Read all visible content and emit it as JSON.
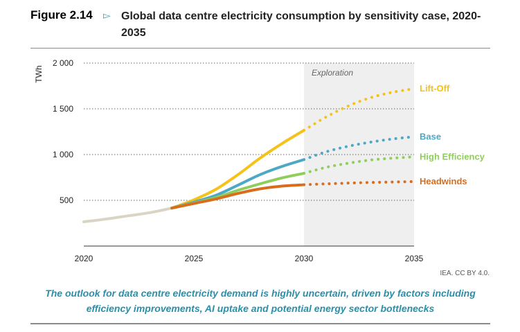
{
  "figure": {
    "label": "Figure 2.14",
    "title": "Global data centre electricity consumption by sensitivity case, 2020-2035"
  },
  "credit": "IEA. CC BY 4.0.",
  "caption": "The outlook for data centre electricity demand is highly uncertain, driven by factors including efficiency improvements, AI uptake and potential energy sector bottlenecks",
  "icons": {
    "arrow": "triangle-right-outline-icon"
  },
  "chart_data": {
    "type": "line",
    "title": "Global data centre electricity consumption by sensitivity case, 2020-2035",
    "ylabel": "TWh",
    "xlabel": "",
    "xlim": [
      2020,
      2035
    ],
    "ylim": [
      0,
      2000
    ],
    "xticks": [
      {
        "value": 2020,
        "label": "2020"
      },
      {
        "value": 2025,
        "label": "2025"
      },
      {
        "value": 2030,
        "label": "2030"
      },
      {
        "value": 2035,
        "label": "2035"
      }
    ],
    "yticks": [
      {
        "value": 500,
        "label": "500"
      },
      {
        "value": 1000,
        "label": "1 000"
      },
      {
        "value": 1500,
        "label": "1 500"
      },
      {
        "value": 2000,
        "label": "2 000"
      }
    ],
    "grid": "horizontal dotted",
    "shaded_region": {
      "label": "Exploration",
      "x": [
        2030,
        2035
      ],
      "color": "#efefef"
    },
    "historical": {
      "color": "#d9d4c3",
      "x": [
        2020,
        2021,
        2022,
        2023,
        2024
      ],
      "y": [
        265,
        295,
        330,
        365,
        415
      ]
    },
    "series": [
      {
        "name": "Lift-Off",
        "color": "#f5c21b",
        "solid": {
          "x": [
            2024,
            2025,
            2026,
            2027,
            2028,
            2029,
            2030
          ],
          "y": [
            415,
            505,
            620,
            780,
            960,
            1120,
            1265
          ]
        },
        "dotted": {
          "x": [
            2030,
            2031,
            2032,
            2033,
            2034,
            2035
          ],
          "y": [
            1265,
            1410,
            1530,
            1620,
            1680,
            1720
          ]
        }
      },
      {
        "name": "Base",
        "color": "#4da8c4",
        "solid": {
          "x": [
            2024,
            2025,
            2026,
            2027,
            2028,
            2029,
            2030
          ],
          "y": [
            415,
            480,
            555,
            665,
            780,
            870,
            945
          ]
        },
        "dotted": {
          "x": [
            2030,
            2031,
            2032,
            2033,
            2034,
            2035
          ],
          "y": [
            945,
            1030,
            1090,
            1135,
            1170,
            1195
          ]
        }
      },
      {
        "name": "High Efficiency",
        "color": "#8fce5a",
        "solid": {
          "x": [
            2024,
            2025,
            2026,
            2027,
            2028,
            2029,
            2030
          ],
          "y": [
            415,
            470,
            530,
            610,
            680,
            745,
            795
          ]
        },
        "dotted": {
          "x": [
            2030,
            2031,
            2032,
            2033,
            2034,
            2035
          ],
          "y": [
            795,
            860,
            905,
            940,
            960,
            975
          ]
        }
      },
      {
        "name": "Headwinds",
        "color": "#d96d1d",
        "solid": {
          "x": [
            2024,
            2025,
            2026,
            2027,
            2028,
            2029,
            2030
          ],
          "y": [
            415,
            465,
            515,
            575,
            625,
            655,
            670
          ]
        },
        "dotted": {
          "x": [
            2030,
            2031,
            2032,
            2033,
            2034,
            2035
          ],
          "y": [
            670,
            680,
            688,
            695,
            700,
            705
          ]
        }
      }
    ]
  }
}
